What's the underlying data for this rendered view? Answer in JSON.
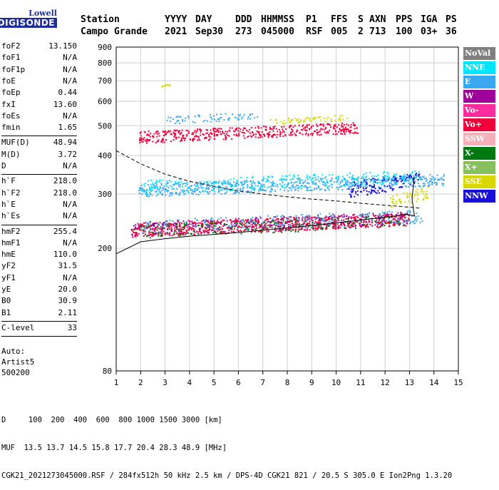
{
  "logo": {
    "line1": "Lowell",
    "line2": "DIGISONDE"
  },
  "header": {
    "labels": [
      "Station",
      "YYYY",
      "DAY",
      "DDD",
      "HHMMSS",
      "P1",
      "FFS",
      "S",
      "AXN",
      "PPS",
      "IGA",
      "PS"
    ],
    "values": [
      "Campo Grande",
      "2021",
      "Sep30",
      "273",
      "045000",
      "RSF",
      "005",
      "2",
      "713",
      "100",
      "03+",
      "36"
    ]
  },
  "params": [
    {
      "k": "foF2",
      "v": "13.150"
    },
    {
      "k": "foF1",
      "v": "N/A"
    },
    {
      "k": "foF1p",
      "v": "N/A"
    },
    {
      "k": "foE",
      "v": "N/A"
    },
    {
      "k": "foEp",
      "v": "0.44"
    },
    {
      "k": "fxI",
      "v": "13.60"
    },
    {
      "k": "foEs",
      "v": "N/A"
    },
    {
      "k": "fmin",
      "v": "1.65"
    },
    {
      "k": "MUF(D)",
      "v": "48.94"
    },
    {
      "k": "M(D)",
      "v": "3.72"
    },
    {
      "k": "D",
      "v": "N/A"
    },
    {
      "k": "h`F",
      "v": "218.0"
    },
    {
      "k": "h`F2",
      "v": "218.0"
    },
    {
      "k": "h`E",
      "v": "N/A"
    },
    {
      "k": "h`Es",
      "v": "N/A"
    },
    {
      "k": "hmF2",
      "v": "255.4"
    },
    {
      "k": "hmF1",
      "v": "N/A"
    },
    {
      "k": "hmE",
      "v": "110.0"
    },
    {
      "k": "yF2",
      "v": "31.5"
    },
    {
      "k": "yF1",
      "v": "N/A"
    },
    {
      "k": "yE",
      "v": "20.0"
    },
    {
      "k": "B0",
      "v": "30.9"
    },
    {
      "k": "B1",
      "v": "2.11"
    },
    {
      "k": "C-level",
      "v": "33"
    }
  ],
  "auto": {
    "line1": "Auto:",
    "line2": "Artist5",
    "line3": "500200"
  },
  "chart_data": {
    "type": "scatter",
    "xlabel": "",
    "ylabel": "",
    "xlim": [
      1,
      15
    ],
    "ylim": [
      80,
      900
    ],
    "xticks": [
      1,
      2,
      3,
      4,
      5,
      6,
      7,
      8,
      9,
      10,
      11,
      12,
      13,
      14,
      15
    ],
    "yticks": [
      80,
      200,
      300,
      400,
      500,
      600,
      700,
      800,
      900
    ],
    "y_scale": "log",
    "grid": true,
    "legend_position": "right",
    "legend": [
      {
        "name": "NoVal",
        "color": "#808080"
      },
      {
        "name": "NNE",
        "color": "#00e5ff"
      },
      {
        "name": "E",
        "color": "#3aa8f0"
      },
      {
        "name": "W",
        "color": "#a0009a"
      },
      {
        "name": "Vo-",
        "color": "#ff2ca0"
      },
      {
        "name": "Vo+",
        "color": "#f0003a"
      },
      {
        "name": "SSW",
        "color": "#f5b0b8"
      },
      {
        "name": "X-",
        "color": "#007a10"
      },
      {
        "name": "X+",
        "color": "#88c060"
      },
      {
        "name": "SSE",
        "color": "#d8d800"
      },
      {
        "name": "NNW",
        "color": "#1810d8"
      }
    ],
    "profile_curve": [
      [
        1.0,
        415
      ],
      [
        2.0,
        376
      ],
      [
        3.0,
        348
      ],
      [
        4.0,
        330
      ],
      [
        5.0,
        318
      ],
      [
        6.0,
        307
      ],
      [
        7.0,
        300
      ],
      [
        8.0,
        294
      ],
      [
        9.0,
        289
      ],
      [
        10.0,
        285
      ],
      [
        11.0,
        280
      ],
      [
        12.0,
        276
      ],
      [
        13.0,
        272
      ],
      [
        13.4,
        270
      ]
    ],
    "trace_curve": [
      [
        1.0,
        192
      ],
      [
        2.0,
        210
      ],
      [
        3.0,
        215
      ],
      [
        4.0,
        219
      ],
      [
        5.0,
        222
      ],
      [
        6.0,
        225
      ],
      [
        7.0,
        229
      ],
      [
        8.0,
        233
      ],
      [
        9.0,
        237
      ],
      [
        10.0,
        242
      ],
      [
        11.0,
        247
      ],
      [
        12.0,
        252
      ],
      [
        12.9,
        258
      ],
      [
        13.2,
        255
      ],
      [
        13.1,
        290
      ],
      [
        13.2,
        340
      ]
    ],
    "echo_bands": [
      {
        "color": "#f0003a",
        "x0": 1.6,
        "x1": 13.0,
        "y0": 218,
        "y1": 262,
        "n": 900
      },
      {
        "color": "#a0009a",
        "x0": 1.6,
        "x1": 13.0,
        "y0": 220,
        "y1": 264,
        "n": 300
      },
      {
        "color": "#3aa8f0",
        "x0": 1.9,
        "x1": 13.5,
        "y0": 222,
        "y1": 268,
        "n": 250
      },
      {
        "color": "#007a10",
        "x0": 1.7,
        "x1": 12.8,
        "y0": 216,
        "y1": 258,
        "n": 180
      },
      {
        "color": "#3aa8f0",
        "x0": 1.9,
        "x1": 14.4,
        "y0": 295,
        "y1": 350,
        "n": 650
      },
      {
        "color": "#00e5ff",
        "x0": 2.0,
        "x1": 13.5,
        "y0": 300,
        "y1": 360,
        "n": 300
      },
      {
        "color": "#f0003a",
        "x0": 1.9,
        "x1": 10.9,
        "y0": 440,
        "y1": 515,
        "n": 500
      },
      {
        "color": "#3aa8f0",
        "x0": 3.0,
        "x1": 6.8,
        "y0": 505,
        "y1": 560,
        "n": 70
      },
      {
        "color": "#d8d800",
        "x0": 7.2,
        "x1": 10.5,
        "y0": 505,
        "y1": 545,
        "n": 60
      },
      {
        "color": "#1810d8",
        "x0": 10.5,
        "x1": 13.4,
        "y0": 290,
        "y1": 360,
        "n": 120
      },
      {
        "color": "#d8d800",
        "x0": 12.2,
        "x1": 13.8,
        "y0": 270,
        "y1": 320,
        "n": 60
      },
      {
        "color": "#d8d800",
        "x0": 2.8,
        "x1": 3.2,
        "y0": 670,
        "y1": 690,
        "n": 12
      }
    ]
  },
  "footer": {
    "line1": "D     100  200  400  600  800 1000 1500 3000 [km]",
    "line2": "MUF  13.5 13.7 14.5 15.8 17.7 20.4 28.3 48.9 [MHz]",
    "line3": "CGK21_2021273045000.RSF / 284fx512h 50 kHz 2.5 km / DPS-4D CGK21 821 / 20.5 S 305.0 E Ion2Png 1.3.20"
  }
}
